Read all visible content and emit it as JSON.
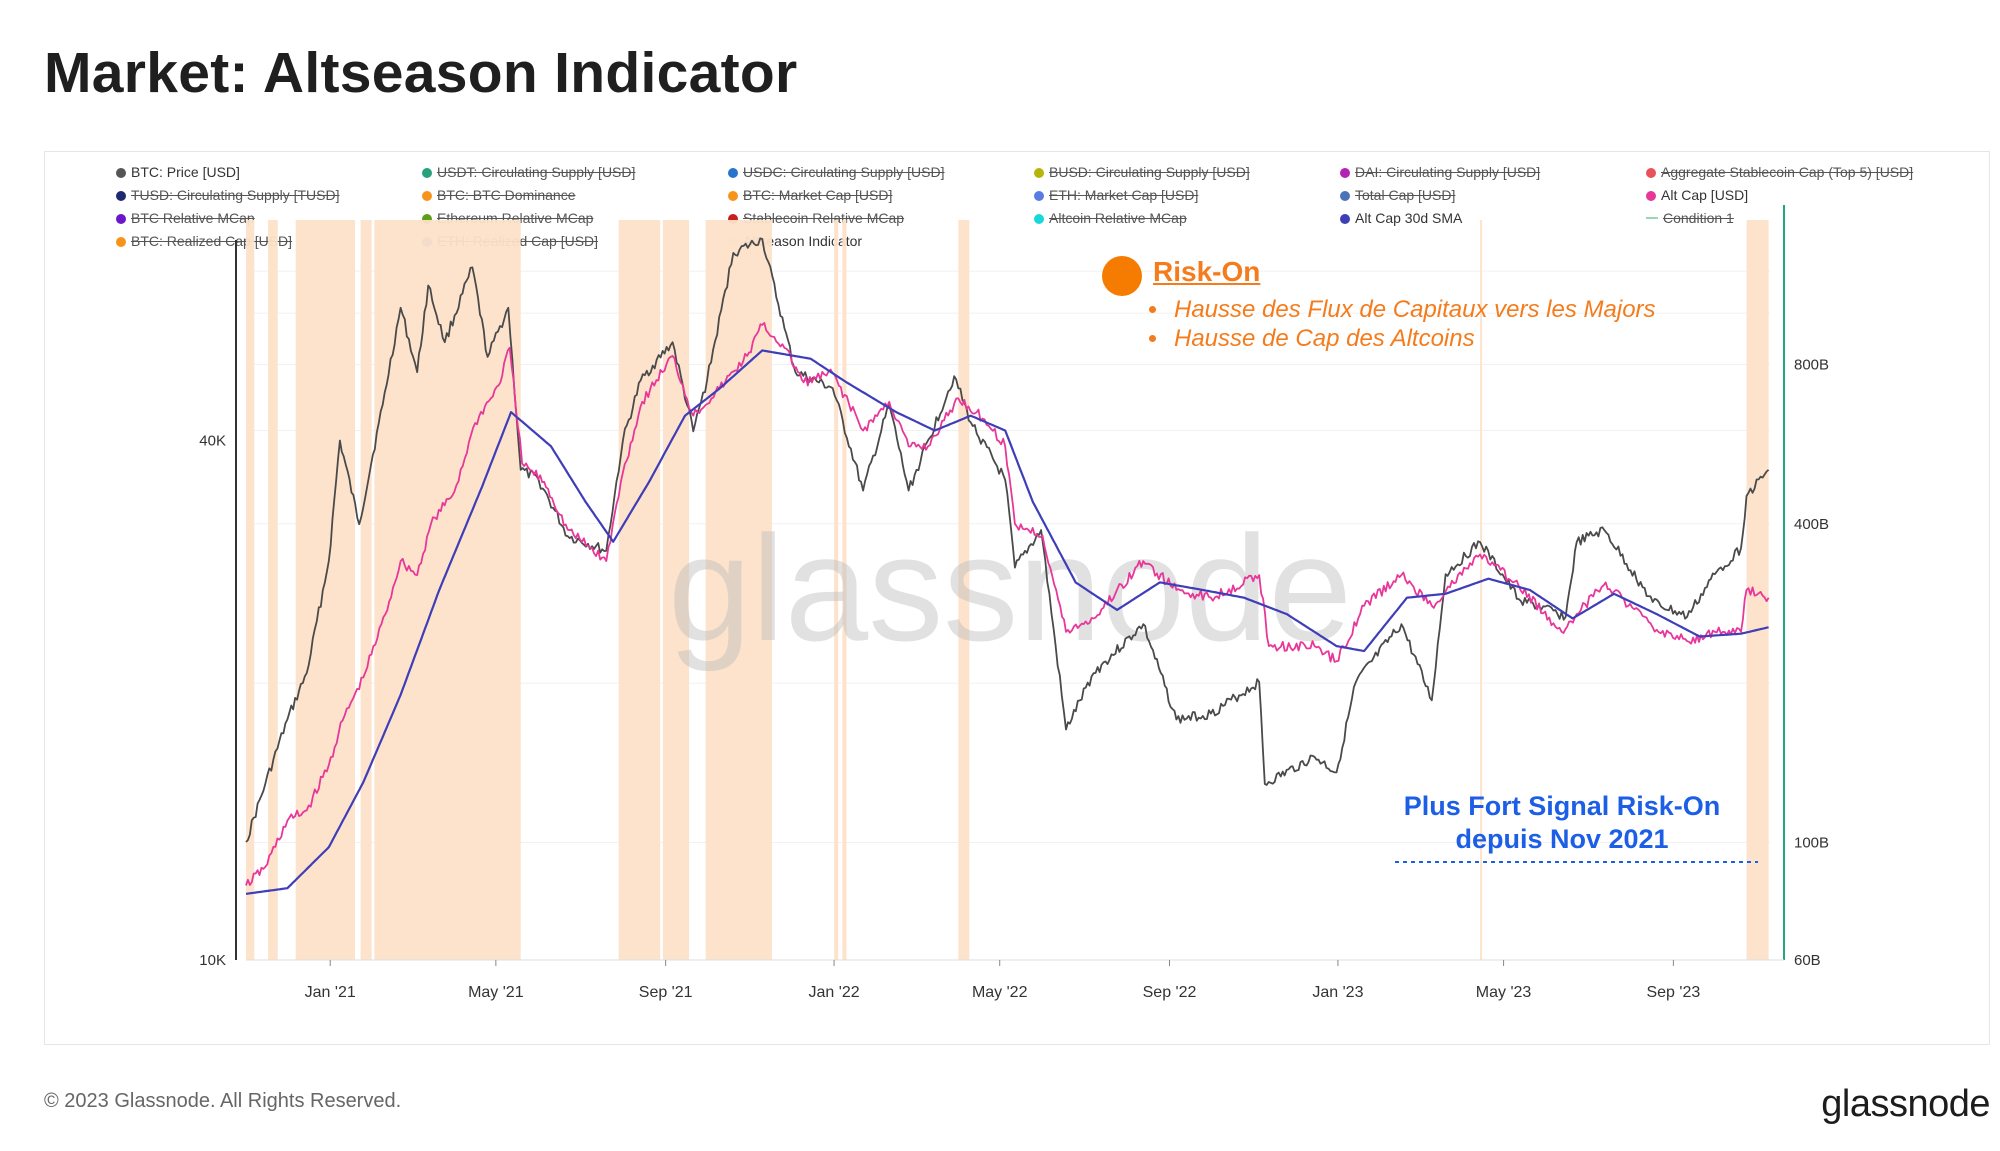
{
  "title": "Market: Altseason Indicator",
  "footer": {
    "copyright": "© 2023 Glassnode. All Rights Reserved.",
    "logo": "glassnode"
  },
  "watermark": "glassnode",
  "legend": [
    {
      "label": "BTC: Price [USD]",
      "color": "#555555",
      "active": true
    },
    {
      "label": "USDT: Circulating Supply [USD]",
      "color": "#26a17b",
      "active": false
    },
    {
      "label": "USDC: Circulating Supply [USD]",
      "color": "#2775ca",
      "active": false
    },
    {
      "label": "BUSD: Circulating Supply [USD]",
      "color": "#b8b40a",
      "active": false
    },
    {
      "label": "DAI: Circulating Supply [USD]",
      "color": "#b321b5",
      "active": false
    },
    {
      "label": "Aggregate Stablecoin Cap (Top 5) [USD]",
      "color": "#e8525a",
      "active": false
    },
    {
      "label": "TUSD: Circulating Supply [TUSD]",
      "color": "#1f2a6e",
      "active": false
    },
    {
      "label": "BTC: BTC Dominance",
      "color": "#f7931a",
      "active": false
    },
    {
      "label": "BTC: Market Cap [USD]",
      "color": "#f7931a",
      "active": false
    },
    {
      "label": "ETH: Market Cap [USD]",
      "color": "#5b7be2",
      "active": false
    },
    {
      "label": "Total Cap [USD]",
      "color": "#4a74b8",
      "active": false
    },
    {
      "label": "Alt Cap [USD]",
      "color": "#e8379a",
      "active": true
    },
    {
      "label": "BTC Relative MCap",
      "color": "#6b16c9",
      "active": false
    },
    {
      "label": "Ethereum Relative MCap",
      "color": "#5e9e1a",
      "active": false
    },
    {
      "label": "Stablecoin Relative MCap",
      "color": "#c5201b",
      "active": false
    },
    {
      "label": "Altcoin Relative MCap",
      "color": "#19d8d8",
      "active": false
    },
    {
      "label": "Alt Cap 30d SMA",
      "color": "#3e3eb8",
      "active": true
    },
    {
      "label": "Condition 1",
      "color": "#9cd7b4",
      "active": false,
      "line": true
    },
    {
      "label": "BTC: Realized Cap [USD]",
      "color": "#f7931a",
      "active": false
    },
    {
      "label": "ETH: Realized Cap [USD]",
      "color": "#5b7be2",
      "active": false
    },
    {
      "label": "Altseason Indicator",
      "color": "#fde2c9",
      "active": true
    }
  ],
  "annotations": {
    "risk_on_title": "Risk-On",
    "bullets": [
      "Hausse des Flux de Capitaux vers les Majors",
      "Hausse de Cap des Altcoins"
    ],
    "signal_line1": "Plus Fort Signal Risk-On",
    "signal_line2": "depuis Nov 2021"
  },
  "chart_data": {
    "type": "line",
    "title": "Market: Altseason Indicator",
    "x_range": [
      "2020-11-01",
      "2023-11-10"
    ],
    "x_ticks": [
      "Jan '21",
      "May '21",
      "Sep '21",
      "Jan '22",
      "May '22",
      "Sep '22",
      "Jan '23",
      "May '23",
      "Sep '23"
    ],
    "y_left": {
      "scale": "log",
      "range": [
        10000,
        75000
      ],
      "ticks": [
        "10K",
        "40K"
      ]
    },
    "y_right": {
      "scale": "log",
      "range": [
        60000000000,
        1600000000000
      ],
      "ticks": [
        "60B",
        "100B",
        "400B",
        "800B"
      ]
    },
    "series": [
      {
        "name": "BTC: Price [USD]",
        "axis": "left",
        "color": "#4a4a4a",
        "points": [
          [
            "2020-11-01",
            13700
          ],
          [
            "2020-11-15",
            16000
          ],
          [
            "2020-12-01",
            19000
          ],
          [
            "2020-12-15",
            21500
          ],
          [
            "2020-12-31",
            29000
          ],
          [
            "2021-01-08",
            40000
          ],
          [
            "2021-01-22",
            32000
          ],
          [
            "2021-02-08",
            44000
          ],
          [
            "2021-02-21",
            57000
          ],
          [
            "2021-03-05",
            48000
          ],
          [
            "2021-03-13",
            60500
          ],
          [
            "2021-03-25",
            52000
          ],
          [
            "2021-04-14",
            63500
          ],
          [
            "2021-04-25",
            50000
          ],
          [
            "2021-05-10",
            57000
          ],
          [
            "2021-05-19",
            37000
          ],
          [
            "2021-06-01",
            36000
          ],
          [
            "2021-06-22",
            31000
          ],
          [
            "2021-07-20",
            29800
          ],
          [
            "2021-08-01",
            40000
          ],
          [
            "2021-08-14",
            47000
          ],
          [
            "2021-09-06",
            52000
          ],
          [
            "2021-09-21",
            41000
          ],
          [
            "2021-10-01",
            47000
          ],
          [
            "2021-10-20",
            66000
          ],
          [
            "2021-11-10",
            68500
          ],
          [
            "2021-11-26",
            54000
          ],
          [
            "2021-12-04",
            48000
          ],
          [
            "2021-12-31",
            46000
          ],
          [
            "2022-01-22",
            35000
          ],
          [
            "2022-02-10",
            44000
          ],
          [
            "2022-02-24",
            35000
          ],
          [
            "2022-03-29",
            47500
          ],
          [
            "2022-04-10",
            42000
          ],
          [
            "2022-05-05",
            36000
          ],
          [
            "2022-05-12",
            28500
          ],
          [
            "2022-05-31",
            31500
          ],
          [
            "2022-06-18",
            18500
          ],
          [
            "2022-07-08",
            21500
          ],
          [
            "2022-08-13",
            24500
          ],
          [
            "2022-09-06",
            19000
          ],
          [
            "2022-10-01",
            19300
          ],
          [
            "2022-11-05",
            21000
          ],
          [
            "2022-11-09",
            16000
          ],
          [
            "2022-12-15",
            17200
          ],
          [
            "2022-12-31",
            16500
          ],
          [
            "2023-01-14",
            21000
          ],
          [
            "2023-02-16",
            24500
          ],
          [
            "2023-03-10",
            20000
          ],
          [
            "2023-03-20",
            28000
          ],
          [
            "2023-04-14",
            30500
          ],
          [
            "2023-05-12",
            26200
          ],
          [
            "2023-06-15",
            25000
          ],
          [
            "2023-06-23",
            30500
          ],
          [
            "2023-07-13",
            31500
          ],
          [
            "2023-08-17",
            26000
          ],
          [
            "2023-09-11",
            25000
          ],
          [
            "2023-10-01",
            28000
          ],
          [
            "2023-10-20",
            30000
          ],
          [
            "2023-10-24",
            34500
          ],
          [
            "2023-11-09",
            37000
          ]
        ]
      },
      {
        "name": "Alt Cap [USD]",
        "axis": "right",
        "color": "#e8379a",
        "points": [
          [
            "2020-11-01",
            83000000000
          ],
          [
            "2020-11-15",
            90000000000
          ],
          [
            "2020-12-01",
            110000000000
          ],
          [
            "2020-12-15",
            115000000000
          ],
          [
            "2020-12-31",
            140000000000
          ],
          [
            "2021-01-10",
            170000000000
          ],
          [
            "2021-01-25",
            205000000000
          ],
          [
            "2021-02-10",
            270000000000
          ],
          [
            "2021-02-21",
            340000000000
          ],
          [
            "2021-03-05",
            320000000000
          ],
          [
            "2021-03-15",
            400000000000
          ],
          [
            "2021-04-01",
            460000000000
          ],
          [
            "2021-04-16",
            620000000000
          ],
          [
            "2021-05-03",
            730000000000
          ],
          [
            "2021-05-11",
            860000000000
          ],
          [
            "2021-05-20",
            520000000000
          ],
          [
            "2021-06-05",
            480000000000
          ],
          [
            "2021-06-22",
            390000000000
          ],
          [
            "2021-07-20",
            340000000000
          ],
          [
            "2021-08-01",
            500000000000
          ],
          [
            "2021-08-15",
            680000000000
          ],
          [
            "2021-09-06",
            830000000000
          ],
          [
            "2021-09-21",
            640000000000
          ],
          [
            "2021-10-10",
            720000000000
          ],
          [
            "2021-10-30",
            830000000000
          ],
          [
            "2021-11-10",
            950000000000
          ],
          [
            "2021-11-26",
            860000000000
          ],
          [
            "2021-12-10",
            740000000000
          ],
          [
            "2021-12-31",
            770000000000
          ],
          [
            "2022-01-22",
            600000000000
          ],
          [
            "2022-02-10",
            680000000000
          ],
          [
            "2022-02-24",
            560000000000
          ],
          [
            "2022-03-10",
            560000000000
          ],
          [
            "2022-04-01",
            690000000000
          ],
          [
            "2022-04-20",
            630000000000
          ],
          [
            "2022-05-05",
            560000000000
          ],
          [
            "2022-05-12",
            400000000000
          ],
          [
            "2022-06-01",
            380000000000
          ],
          [
            "2022-06-18",
            250000000000
          ],
          [
            "2022-07-08",
            265000000000
          ],
          [
            "2022-08-13",
            340000000000
          ],
          [
            "2022-09-06",
            300000000000
          ],
          [
            "2022-10-01",
            290000000000
          ],
          [
            "2022-11-05",
            320000000000
          ],
          [
            "2022-11-12",
            235000000000
          ],
          [
            "2022-12-15",
            235000000000
          ],
          [
            "2022-12-31",
            220000000000
          ],
          [
            "2023-01-20",
            280000000000
          ],
          [
            "2023-02-16",
            320000000000
          ],
          [
            "2023-03-10",
            280000000000
          ],
          [
            "2023-04-14",
            350000000000
          ],
          [
            "2023-05-12",
            305000000000
          ],
          [
            "2023-06-12",
            250000000000
          ],
          [
            "2023-06-23",
            270000000000
          ],
          [
            "2023-07-14",
            310000000000
          ],
          [
            "2023-08-17",
            255000000000
          ],
          [
            "2023-09-11",
            240000000000
          ],
          [
            "2023-10-01",
            250000000000
          ],
          [
            "2023-10-20",
            250000000000
          ],
          [
            "2023-10-24",
            300000000000
          ],
          [
            "2023-11-09",
            290000000000
          ]
        ]
      },
      {
        "name": "Alt Cap 30d SMA",
        "axis": "right",
        "color": "#3e3eb8",
        "points": [
          [
            "2020-11-01",
            80000000000
          ],
          [
            "2020-12-01",
            82000000000
          ],
          [
            "2020-12-31",
            98000000000
          ],
          [
            "2021-01-25",
            130000000000
          ],
          [
            "2021-02-21",
            190000000000
          ],
          [
            "2021-03-21",
            300000000000
          ],
          [
            "2021-04-21",
            470000000000
          ],
          [
            "2021-05-12",
            650000000000
          ],
          [
            "2021-06-10",
            560000000000
          ],
          [
            "2021-07-05",
            440000000000
          ],
          [
            "2021-07-25",
            370000000000
          ],
          [
            "2021-08-20",
            480000000000
          ],
          [
            "2021-09-15",
            640000000000
          ],
          [
            "2021-10-10",
            720000000000
          ],
          [
            "2021-11-10",
            850000000000
          ],
          [
            "2021-12-15",
            820000000000
          ],
          [
            "2022-01-10",
            740000000000
          ],
          [
            "2022-02-15",
            650000000000
          ],
          [
            "2022-03-15",
            600000000000
          ],
          [
            "2022-04-10",
            640000000000
          ],
          [
            "2022-05-05",
            600000000000
          ],
          [
            "2022-05-25",
            440000000000
          ],
          [
            "2022-06-25",
            310000000000
          ],
          [
            "2022-07-25",
            275000000000
          ],
          [
            "2022-08-25",
            310000000000
          ],
          [
            "2022-09-25",
            300000000000
          ],
          [
            "2022-10-25",
            290000000000
          ],
          [
            "2022-11-25",
            270000000000
          ],
          [
            "2022-12-31",
            235000000000
          ],
          [
            "2023-01-20",
            230000000000
          ],
          [
            "2023-02-20",
            290000000000
          ],
          [
            "2023-03-20",
            295000000000
          ],
          [
            "2023-04-20",
            315000000000
          ],
          [
            "2023-05-20",
            300000000000
          ],
          [
            "2023-06-20",
            265000000000
          ],
          [
            "2023-07-20",
            295000000000
          ],
          [
            "2023-08-20",
            270000000000
          ],
          [
            "2023-09-20",
            245000000000
          ],
          [
            "2023-10-20",
            248000000000
          ],
          [
            "2023-11-09",
            255000000000
          ]
        ]
      }
    ],
    "altseason_periods": [
      [
        "2020-11-01",
        "2020-11-07"
      ],
      [
        "2020-11-17",
        "2020-11-24"
      ],
      [
        "2020-12-07",
        "2021-01-19"
      ],
      [
        "2021-01-23",
        "2021-01-31"
      ],
      [
        "2021-02-02",
        "2021-05-19"
      ],
      [
        "2021-07-29",
        "2021-08-28"
      ],
      [
        "2021-08-30",
        "2021-09-18"
      ],
      [
        "2021-09-30",
        "2021-11-17"
      ],
      [
        "2022-01-01",
        "2022-01-04"
      ],
      [
        "2022-01-07",
        "2022-01-10"
      ],
      [
        "2022-04-01",
        "2022-04-09"
      ],
      [
        "2023-04-14",
        "2023-04-15"
      ],
      [
        "2023-10-24",
        "2023-11-09"
      ]
    ]
  }
}
